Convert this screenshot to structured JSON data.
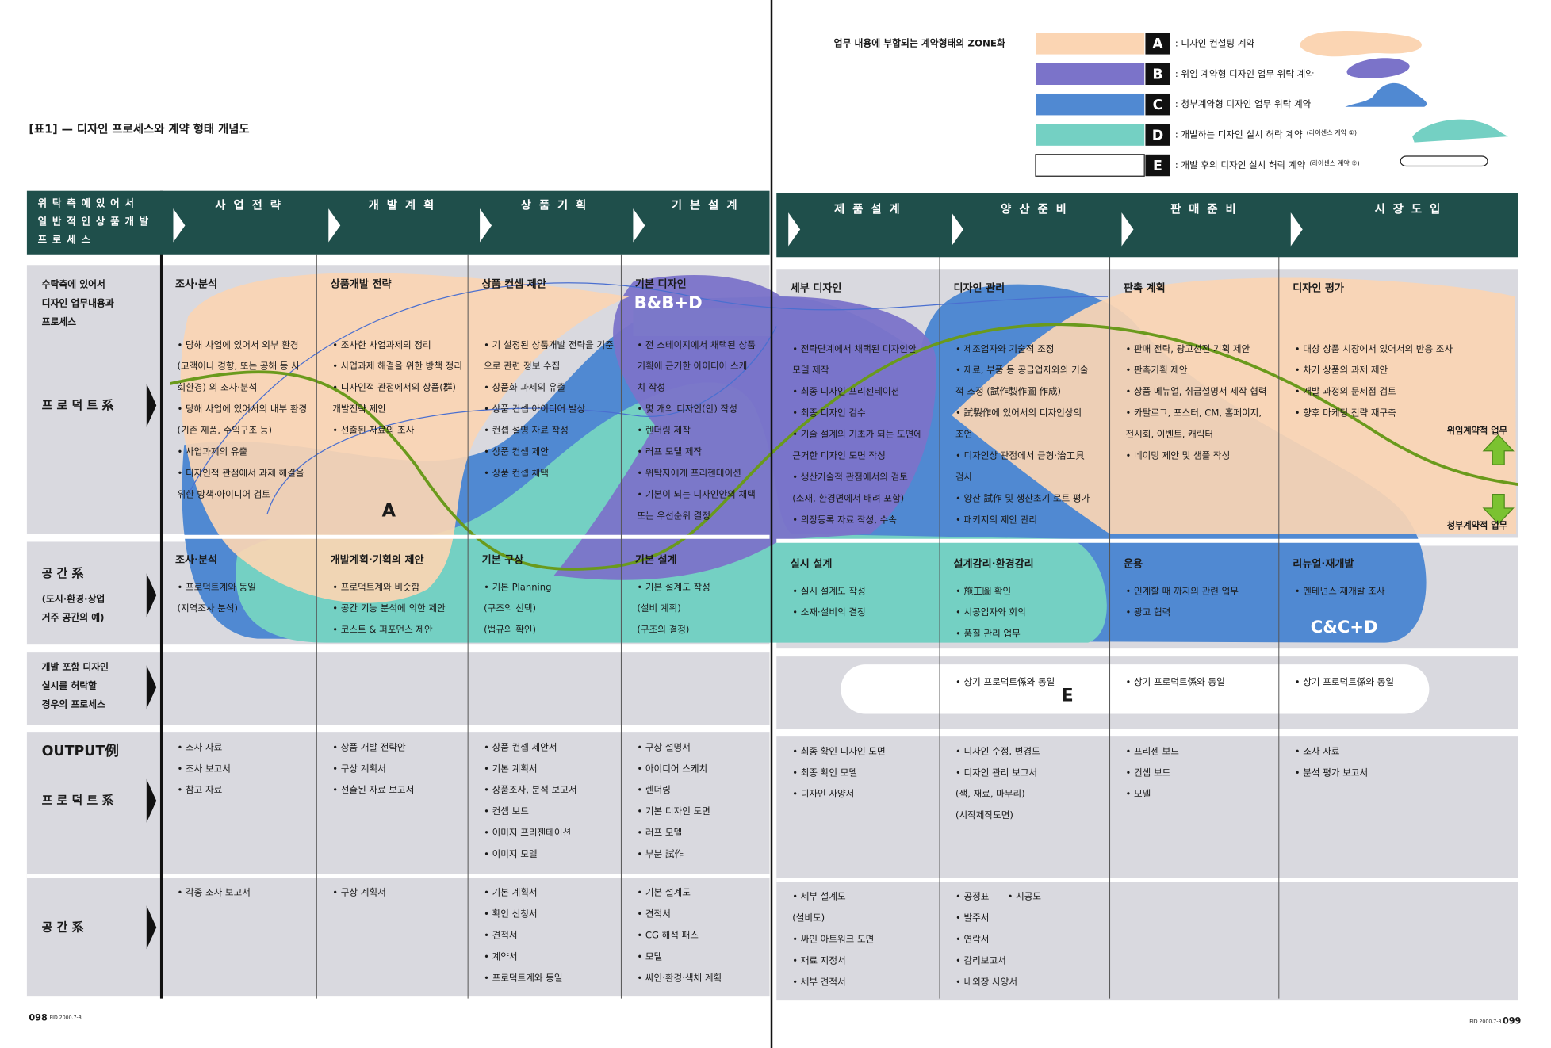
{
  "page_title": "[표1] — 디자인 프로세스와 계약 형태 개념도",
  "legend": {
    "title": "업무 내용에 부합되는 계약형태의 ZONE화",
    "items": [
      {
        "letter": "A",
        "label": ": 디자인 컨설팅 계약",
        "color": "#fbd5b3"
      },
      {
        "letter": "B",
        "label": ": 위임 계약형 디자인 업무 위탁 계약",
        "color": "#7b73c9"
      },
      {
        "letter": "C",
        "label": ": 청부계약형 디자인 업무 위탁 계약",
        "color": "#5089d2"
      },
      {
        "letter": "D",
        "label": ": 개발하는 디자인 실시 허락 계약",
        "note": "(라이센스 계약 ①)",
        "color": "#74d0c3"
      },
      {
        "letter": "E",
        "label": ": 개발 후의 디자인 실시 허락 계약",
        "note": "(라이센스 계약 ②)",
        "color": "#ffffff"
      }
    ]
  },
  "header": {
    "label": [
      "위 탁 측 에  있 어 서",
      "일 반 적 인  상 품 개 발",
      "프 로 세 스"
    ],
    "stages": [
      "사 업 전 략",
      "개 발 계 획",
      "상 품 기 획",
      "기 본 설 계",
      "제 품 설 계",
      "양 산 준 비",
      "판 매 준 비",
      "시 장 도 입"
    ]
  },
  "rows": [
    {
      "label": [
        "수탁측에 있어서",
        "디자인 업무내용과",
        "프로세스",
        "프 로 덕 트 系"
      ],
      "cells": [
        {
          "heading": "조사·분석",
          "items": [
            "• 당해 사업에 있어서 외부 환경",
            "(고객이나 경향, 또는 공해 등 사",
            "회환경) 의 조사·분석",
            "• 당해 사업에 있어서의 내부 환경",
            "(기존 제품, 수익구조 등)",
            "• 사업과제의 유출",
            "• 디자인적 관점에서 과제 해결을",
            "위한 방책·아이디어 검토"
          ]
        },
        {
          "heading": "상품개발 전략",
          "items": [
            "• 조사한 사업과제의 정리",
            "• 사업과제 해결을 위한 방책 정리",
            "• 디자인적 관점에서의 상품(群)",
            "개발전략 제안",
            "• 선출된 자료의 조사"
          ]
        },
        {
          "heading": "상품 컨셉 제안",
          "items": [
            "• 기 설정된 상품개발 전략을 기준",
            "으로 관련 정보 수집",
            "• 상품화 과제의 유출",
            "• 상품 컨셉 아이디어 발상",
            "• 컨셉 설명 자료 작성",
            "• 상품 컨셉 제안",
            "• 상품 컨셉 채택"
          ]
        },
        {
          "heading": "기본 디자인",
          "items": [
            "• 전 스테이지에서 채택된 상품",
            "기획에 근거한 아이디어 스케",
            "치 작성",
            "• 몇 개의 디자인(안) 작성",
            "• 렌더링 제작",
            "• 러프 모델 제작",
            "• 위탁자에게 프리젠테이션",
            "• 기본이 되는 디자인안의 채택",
            "또는 우선순위 결정"
          ]
        },
        {
          "heading": "세부 디자인",
          "items": [
            "• 전략단계에서 채택된 디자인안",
            "모델 제작",
            "• 최종 디자인 프리젠테이션",
            "• 최종 디자인 검수",
            "• 기술 설계의 기초가 되는 도면에",
            "근거한 디자인 도면 작성",
            "• 생산기술적 관점에서의 검토",
            "(소재, 환경면에서 배려 포함)",
            "• 의장등록 자료 작성, 수속"
          ]
        },
        {
          "heading": "디자인 관리",
          "items": [
            "• 제조업자와 기술적 조정",
            "• 재료, 부품 등 공급업자와의 기술",
            "적 조정 (試作製作圖 作成)",
            "• 試製作에 있어서의 디자인상의",
            "조언",
            "• 디자인상 관점에서 금형·治工具",
            "검사",
            "• 양산 試作 및 생산초기 로트 평가",
            "• 패키지의 제안 관리"
          ]
        },
        {
          "heading": "판촉 계획",
          "items": [
            "• 판매 전략, 광고선전 기획 제안",
            "• 판촉기획 제안",
            "• 상품 메뉴얼, 취급설명서 제작 협력",
            "• 카탈로그, 포스터, CM, 홈페이지,",
            "전시회, 이벤트, 캐릭터",
            "• 네이밍 제안 및 샘플 작성"
          ]
        },
        {
          "heading": "디자인 평가",
          "items": [
            "• 대상 상품 시장에서 있어서의 반응 조사",
            "• 차기 상품의 과제 제안",
            "• 개발 과정의 문제점 검토",
            "• 향후 마케팅 전략 재구축"
          ]
        }
      ]
    },
    {
      "label": [
        "공 간 系",
        "(도시·환경·상업",
        "거주 공간의 예)"
      ],
      "cells": [
        {
          "heading": "조사·분석",
          "items": [
            "• 프로덕트계와 동일",
            "(지역조사 분석)"
          ]
        },
        {
          "heading": "개발계획·기획의 제안",
          "items": [
            "• 프로덕트계와 비슷함",
            "• 공간 기능 분석에 의한 제안",
            "• 코스트 & 퍼포먼스 제안"
          ]
        },
        {
          "heading": "기본 구상",
          "items": [
            "• 기본 Planning",
            "(구조의 선택)",
            "(법규의 확인)"
          ]
        },
        {
          "heading": "기본 설계",
          "items": [
            "• 기본 설계도 작성",
            "(설비 계획)",
            "(구조의 결정)"
          ]
        },
        {
          "heading": "실시 설계",
          "items": [
            "• 실시 설계도 작성",
            "• 소재·설비의 결정"
          ]
        },
        {
          "heading": "설계감리·환경감리",
          "items": [
            "• 施工圖 확인",
            "• 시공업자와 회의",
            "• 품질 관리 업무"
          ]
        },
        {
          "heading": "운용",
          "items": [
            "• 인계할 때 까지의 관련 업무",
            "• 광고 협력"
          ]
        },
        {
          "heading": "리뉴얼·재개발",
          "items": [
            "• 멘테넌스·재개발 조사"
          ]
        }
      ]
    },
    {
      "label": [
        "개발 포함 디자인",
        "실시를 허락할",
        "경우의 프로세스"
      ],
      "cells": [
        null,
        null,
        null,
        null,
        null,
        {
          "items": [
            "• 상기 프로덕트係와 동일"
          ]
        },
        {
          "items": [
            "• 상기 프로덕트係와 동일"
          ]
        },
        {
          "items": [
            "• 상기 프로덕트係와 동일"
          ]
        }
      ]
    },
    {
      "label": [
        "OUTPUT例",
        "프 로 덕 트 系"
      ],
      "cells": [
        {
          "items": [
            "• 조사 자료",
            "• 조사 보고서",
            "• 참고 자료"
          ]
        },
        {
          "items": [
            "• 상품 개발 전략안",
            "• 구상 계획서",
            "• 선출된 자료 보고서"
          ]
        },
        {
          "items": [
            "• 상품 컨셉 제안서",
            "• 기본 계획서",
            "• 상품조사, 분석 보고서",
            "• 컨셉 보드",
            "• 이미지 프리젠테이션",
            "• 이미지 모델"
          ]
        },
        {
          "items": [
            "• 구상 설명서",
            "• 아이디어 스케치",
            "• 렌더링",
            "• 기본 디자인 도면",
            "• 러프 모델",
            "• 부분 試作"
          ]
        },
        {
          "items": [
            "• 최종 확인 디자인 도면",
            "• 최종 확인 모델",
            "• 디자인 사양서"
          ]
        },
        {
          "items": [
            "• 디자인 수정, 변경도",
            "• 디자인 관리 보고서",
            "(색, 재료, 마무리)",
            "(시작제작도면)"
          ]
        },
        {
          "items": [
            "• 프리젠 보드",
            "• 컨셉 보드",
            "• 모델"
          ]
        },
        {
          "items": [
            "• 조사 자료",
            "• 분석 평가 보고서"
          ]
        }
      ]
    },
    {
      "label": [
        "공 간 系"
      ],
      "cells": [
        {
          "items": [
            "• 각종 조사 보고서"
          ]
        },
        {
          "items": [
            "• 구상 계획서"
          ]
        },
        {
          "items": [
            "• 기본 계획서",
            "• 확인 신청서",
            "• 견적서",
            "• 계약서",
            "• 프로덕트계와 동일"
          ]
        },
        {
          "items": [
            "• 기본 설계도",
            "• 견적서",
            "• CG 해석 패스",
            "• 모델",
            "• 싸인·환경·색채 계획"
          ]
        },
        {
          "items": [
            "• 세부 설계도",
            "(설비도)",
            "• 싸인 아트워크 도면",
            "• 재료 지정서",
            "• 세부 견적서"
          ]
        },
        {
          "items": [
            "• 공정표　　• 시공도",
            "• 발주서",
            "• 연락서",
            "• 감리보고서",
            "• 내외장 사양서"
          ]
        },
        null,
        null
      ]
    }
  ],
  "zone_labels": {
    "A": "A",
    "B": "B&B+D",
    "C": "C&C+D",
    "E": "E"
  },
  "arrows": {
    "up": "위임계약적 업무",
    "down": "청부계약적 업무"
  },
  "footer": {
    "left_page": "098",
    "left_issue": "FID 2000.7-8",
    "right_issue": "FID 2000.7-8",
    "right_page": "099"
  }
}
